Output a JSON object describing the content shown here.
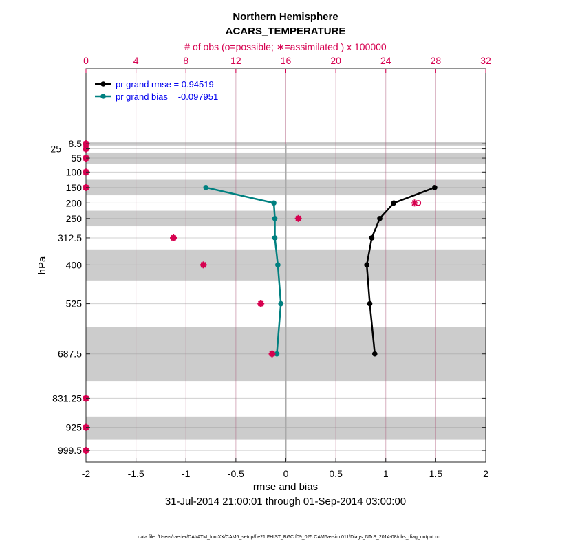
{
  "chart_data": {
    "type": "line",
    "title": "Northern Hemisphere",
    "subtitle": "ACARS_TEMPERATURE",
    "top_axis_label": "# of obs (o=possible; ∗=assimilated ) x 100000",
    "xlabel": "rmse and bias",
    "ylabel": "hPa",
    "date_range": "31-Jul-2014 21:00:01 through 01-Sep-2014 03:00:00",
    "footer": "data file: /Users/raeder/DAI/ATM_forcXX/CAM6_setup/f.e21.FHIST_BGC.f09_025.CAM6assim.011/Diags_NTrS_2014-08/obs_diag_output.nc",
    "xlim": [
      -2,
      2
    ],
    "xticks": [
      -2,
      -1.5,
      -1,
      -0.5,
      0,
      0.5,
      1,
      1.5,
      2
    ],
    "top_xlim": [
      0,
      32
    ],
    "top_xticks": [
      0,
      4,
      8,
      12,
      16,
      20,
      24,
      28,
      32
    ],
    "ylim": [
      -234,
      1037
    ],
    "levels": [
      8.5,
      25,
      55,
      100,
      150,
      200,
      250,
      312.5,
      400,
      525,
      687.5,
      831.25,
      925,
      999.5
    ],
    "level_labels": [
      "8.5",
      "25",
      "55",
      "100",
      "150",
      "200",
      "250",
      "312.5",
      "400",
      "525",
      "687.5",
      "831.25",
      "925",
      "999.5"
    ],
    "shaded_layers": [
      [
        3.5,
        14.5
      ],
      [
        37,
        73
      ],
      [
        125,
        175
      ],
      [
        225,
        275
      ],
      [
        350,
        450
      ],
      [
        600,
        775
      ],
      [
        890,
        965
      ]
    ],
    "series": [
      {
        "name": "pr grand rmse = 0.94519",
        "color": "#000000",
        "levels": [
          150,
          200,
          250,
          312.5,
          400,
          525,
          687.5
        ],
        "values": [
          1.49,
          1.08,
          0.94,
          0.86,
          0.81,
          0.84,
          0.89
        ]
      },
      {
        "name": "pr grand bias = -0.097951",
        "color": "#008080",
        "levels": [
          150,
          200,
          250,
          312.5,
          400,
          525,
          687.5
        ],
        "values": [
          -0.8,
          -0.12,
          -0.11,
          -0.11,
          -0.08,
          -0.05,
          -0.09
        ]
      }
    ],
    "obs_color": "#d6004f",
    "obs_possible": [
      0,
      0,
      0,
      0,
      0,
      26.6,
      17.0,
      7.0,
      9.4,
      14.0,
      14.9,
      0,
      0,
      0
    ],
    "obs_assimilated": [
      0,
      0,
      0,
      0,
      0,
      26.3,
      17.0,
      7.0,
      9.4,
      14.0,
      14.9,
      0,
      0,
      0
    ]
  }
}
